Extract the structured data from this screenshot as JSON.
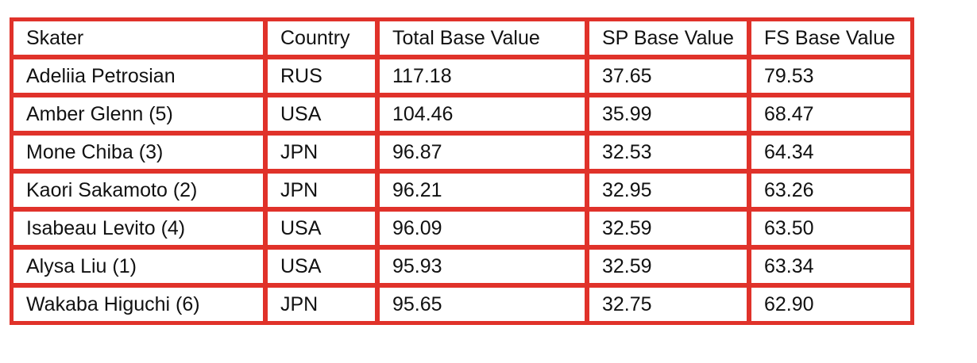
{
  "table": {
    "header": [
      "Skater",
      "Country",
      "Total Base Value",
      "SP Base Value",
      "FS Base Value"
    ],
    "rows": [
      [
        "Adeliia Petrosian",
        "RUS",
        "117.18",
        "37.65",
        "79.53"
      ],
      [
        "Amber Glenn (5)",
        "USA",
        "104.46",
        "35.99",
        "68.47"
      ],
      [
        "Mone Chiba (3)",
        "JPN",
        "96.87",
        "32.53",
        "64.34"
      ],
      [
        "Kaori Sakamoto  (2)",
        "JPN",
        "96.21",
        "32.95",
        "63.26"
      ],
      [
        "Isabeau Levito (4)",
        "USA",
        "96.09",
        "32.59",
        "63.50"
      ],
      [
        "Alysa Liu (1)",
        "USA",
        "95.93",
        "32.59",
        "63.34"
      ],
      [
        "Wakaba Higuchi (6)",
        "JPN",
        "95.65",
        "32.75",
        "62.90"
      ]
    ]
  }
}
